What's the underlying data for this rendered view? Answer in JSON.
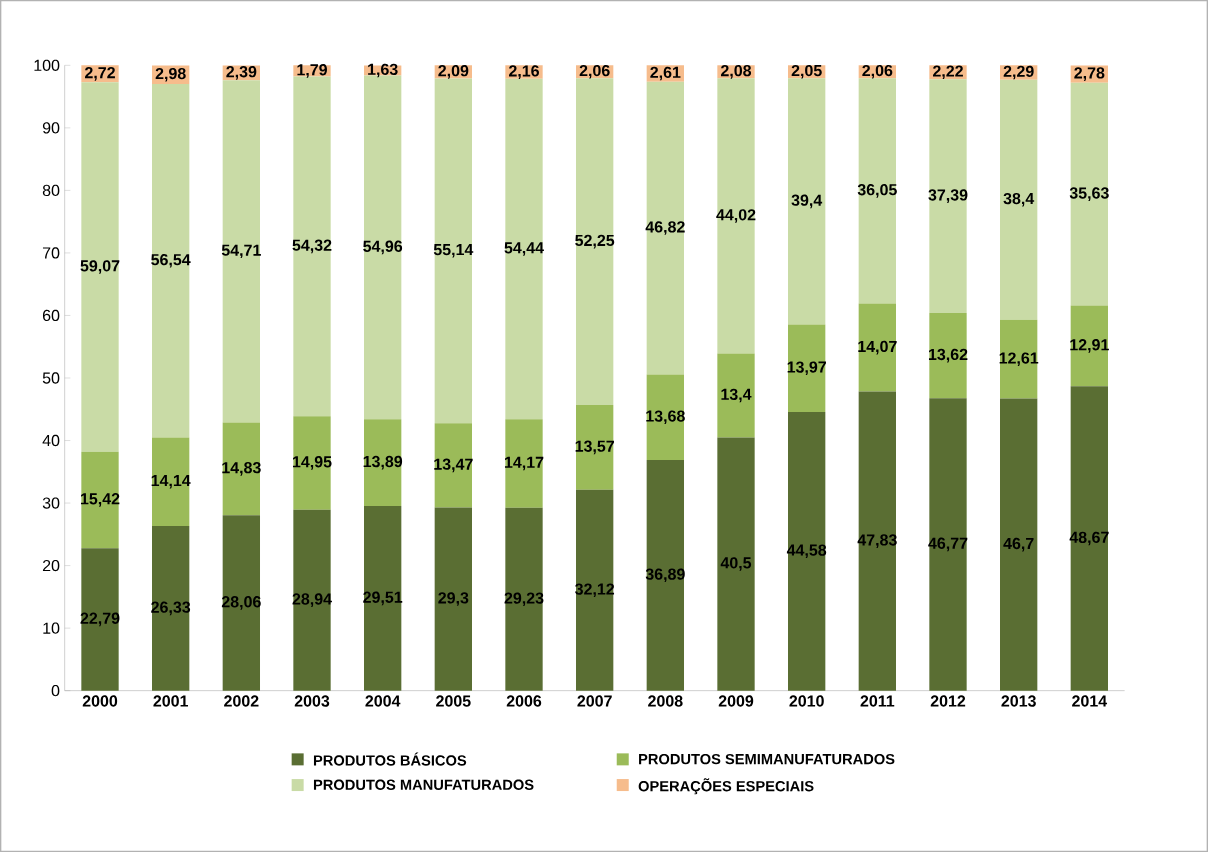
{
  "chart_data": {
    "type": "bar",
    "stacked": true,
    "legend": "bottom",
    "ylim": [
      0,
      100
    ],
    "yticks": [
      0,
      10,
      20,
      30,
      40,
      50,
      60,
      70,
      80,
      90,
      100
    ],
    "categories": [
      "2000",
      "2001",
      "2002",
      "2003",
      "2004",
      "2005",
      "2006",
      "2007",
      "2008",
      "2009",
      "2010",
      "2011",
      "2012",
      "2013",
      "2014"
    ],
    "series": [
      {
        "name": "PRODUTOS BÁSICOS",
        "color": "#5a6e33",
        "values": [
          22.79,
          26.33,
          28.06,
          28.94,
          29.51,
          29.3,
          29.23,
          32.12,
          36.89,
          40.5,
          44.58,
          47.83,
          46.77,
          46.7,
          48.67
        ],
        "value_labels": [
          "22,79",
          "26,33",
          "28,06",
          "28,94",
          "29,51",
          "29,3",
          "29,23",
          "32,12",
          "36,89",
          "40,5",
          "44,58",
          "47,83",
          "46,77",
          "46,7",
          "48,67"
        ]
      },
      {
        "name": "PRODUTOS SEMIMANUFATURADOS",
        "color": "#9bbb59",
        "values": [
          15.42,
          14.14,
          14.83,
          14.95,
          13.89,
          13.47,
          14.17,
          13.57,
          13.68,
          13.4,
          13.97,
          14.07,
          13.62,
          12.61,
          12.91
        ],
        "value_labels": [
          "15,42",
          "14,14",
          "14,83",
          "14,95",
          "13,89",
          "13,47",
          "14,17",
          "13,57",
          "13,68",
          "13,4",
          "13,97",
          "14,07",
          "13,62",
          "12,61",
          "12,91"
        ]
      },
      {
        "name": "PRODUTOS MANUFATURADOS",
        "color": "#c9dba6",
        "values": [
          59.07,
          56.54,
          54.71,
          54.32,
          54.96,
          55.14,
          54.44,
          52.25,
          46.82,
          44.02,
          39.4,
          36.05,
          37.39,
          38.4,
          35.63
        ],
        "value_labels": [
          "59,07",
          "56,54",
          "54,71",
          "54,32",
          "54,96",
          "55,14",
          "54,44",
          "52,25",
          "46,82",
          "44,02",
          "39,4",
          "36,05",
          "37,39",
          "38,4",
          "35,63"
        ]
      },
      {
        "name": "OPERAÇÕES ESPECIAIS",
        "color": "#f6bc8c",
        "values": [
          2.72,
          2.98,
          2.39,
          1.79,
          1.63,
          2.09,
          2.16,
          2.06,
          2.61,
          2.08,
          2.05,
          2.06,
          2.22,
          2.29,
          2.78
        ],
        "value_labels": [
          "2,72",
          "2,98",
          "2,39",
          "1,79",
          "1,63",
          "2,09",
          "2,16",
          "2,06",
          "2,61",
          "2,08",
          "2,05",
          "2,06",
          "2,22",
          "2,29",
          "2,78"
        ]
      }
    ]
  }
}
